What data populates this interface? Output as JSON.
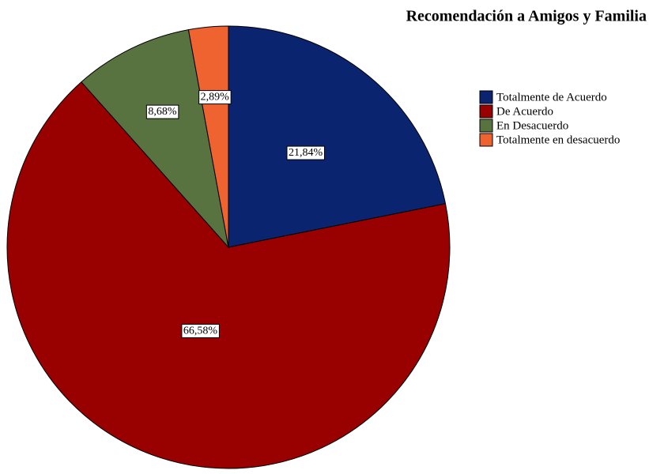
{
  "chart_data": {
    "type": "pie",
    "title": "Recomendación a Amigos y Familia",
    "categories": [
      "Totalmente de Acuerdo",
      "De Acuerdo",
      "En Desacuerdo",
      "Totalmente en desacuerdo"
    ],
    "values": [
      21.84,
      66.58,
      8.68,
      2.89
    ],
    "value_labels": [
      "21,84%",
      "66,58%",
      "8,68%",
      "2,89%"
    ],
    "colors": [
      "#0b2470",
      "#990000",
      "#587340",
      "#ee6330"
    ],
    "legend": "right"
  }
}
